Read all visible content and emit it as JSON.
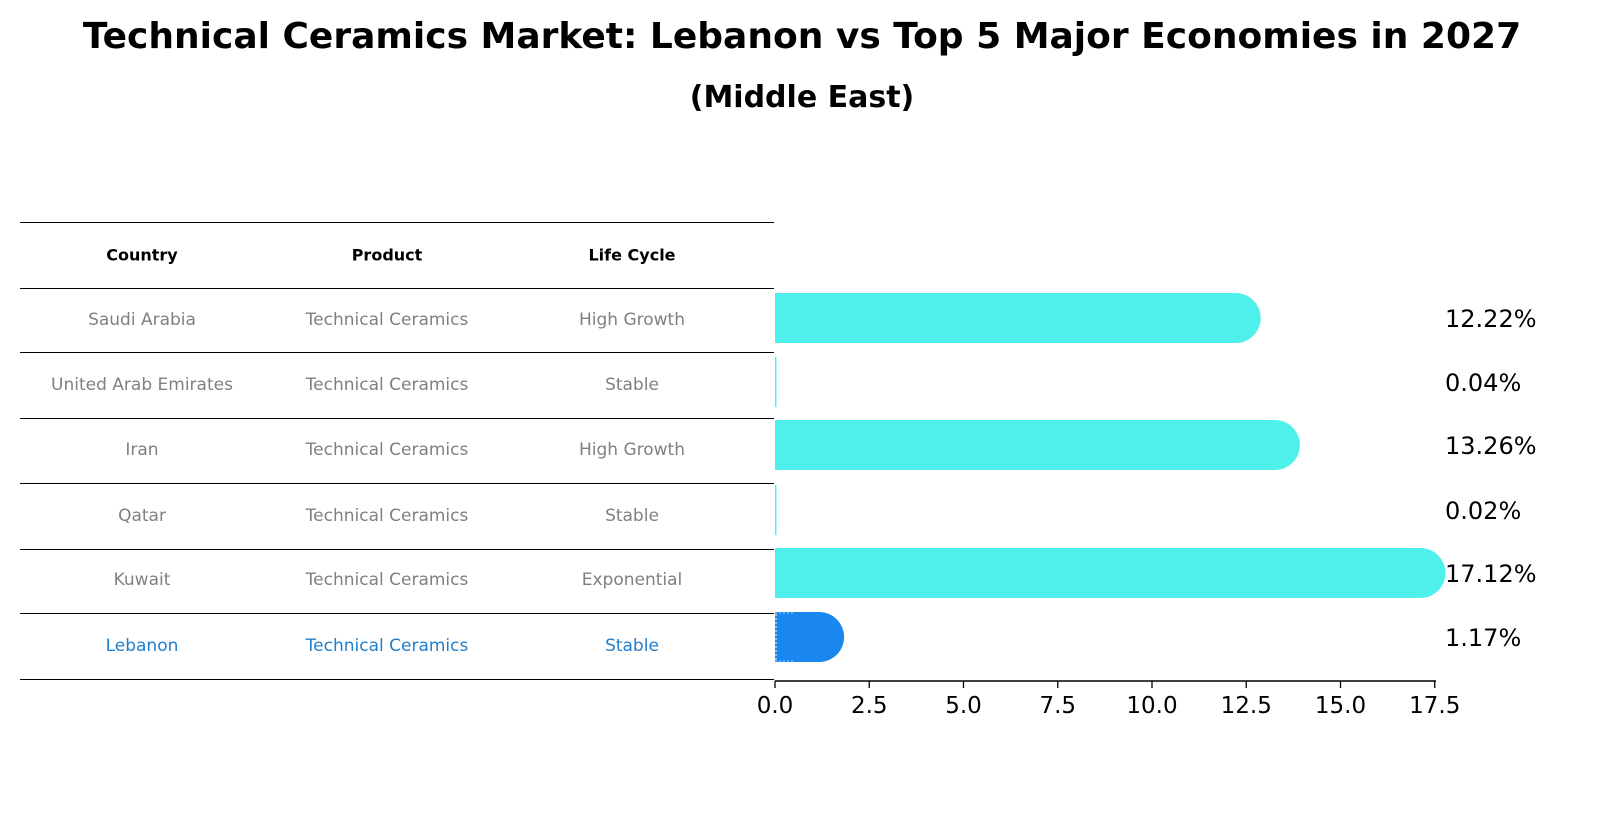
{
  "title": "Technical Ceramics Market: Lebanon vs Top 5 Major Economies in 2027",
  "subtitle": "(Middle East)",
  "table": {
    "headers": [
      "Country",
      "Product",
      "Life Cycle"
    ],
    "rows": [
      {
        "country": "Saudi Arabia",
        "product": "Technical Ceramics",
        "life_cycle": "High Growth"
      },
      {
        "country": "United Arab Emirates",
        "product": "Technical Ceramics",
        "life_cycle": "Stable"
      },
      {
        "country": "Iran",
        "product": "Technical Ceramics",
        "life_cycle": "High Growth"
      },
      {
        "country": "Qatar",
        "product": "Technical Ceramics",
        "life_cycle": "Stable"
      },
      {
        "country": "Kuwait",
        "product": "Technical Ceramics",
        "life_cycle": "Exponential"
      },
      {
        "country": "Lebanon",
        "product": "Technical Ceramics",
        "life_cycle": "Stable"
      }
    ],
    "highlight_row": 5
  },
  "chart_data": {
    "type": "bar",
    "orientation": "horizontal",
    "categories": [
      "Saudi Arabia",
      "United Arab Emirates",
      "Iran",
      "Qatar",
      "Kuwait",
      "Lebanon"
    ],
    "values": [
      12.22,
      0.04,
      13.26,
      0.02,
      17.12,
      1.17
    ],
    "labels": [
      "12.22%",
      "0.04%",
      "13.26%",
      "0.02%",
      "17.12%",
      "1.17%"
    ],
    "xlim": [
      0,
      18
    ],
    "xticks": [
      0.0,
      2.5,
      5.0,
      7.5,
      10.0,
      12.5,
      15.0,
      17.5
    ],
    "xtick_labels": [
      "0.0",
      "2.5",
      "5.0",
      "7.5",
      "10.0",
      "12.5",
      "15.0",
      "17.5"
    ],
    "highlight": "Lebanon",
    "colors": {
      "default": "#4ff0ec",
      "highlight": "#1a86f0",
      "highlight_text": "#1f7fcf"
    }
  }
}
